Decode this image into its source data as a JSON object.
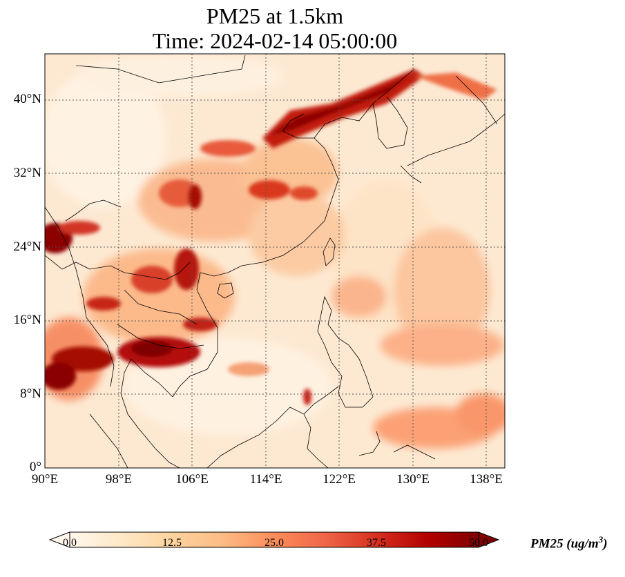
{
  "title": {
    "line1": "PM25 at 1.5km",
    "line2": "Time: 2024-02-14 05:00:00"
  },
  "map": {
    "region": "East and Southeast Asia",
    "extent": {
      "lon_min": 90,
      "lon_max": 140,
      "lat_min": 0,
      "lat_max": 45
    },
    "gridlines": true,
    "lat_labels": [
      "0°",
      "8°N",
      "16°N",
      "24°N",
      "32°N",
      "40°N"
    ],
    "lon_labels": [
      "90°E",
      "98°E",
      "106°E",
      "114°E",
      "122°E",
      "130°E",
      "138°E"
    ],
    "lat_values": [
      0,
      8,
      16,
      24,
      32,
      40
    ],
    "lon_values": [
      90,
      98,
      106,
      114,
      122,
      130,
      138
    ]
  },
  "colorbar": {
    "label": "PM25 (ug/m",
    "label_sup": "3",
    "label_end": ")",
    "ticks": [
      "0.0",
      "12.5",
      "25.0",
      "37.5",
      "50.0"
    ],
    "tick_values": [
      0,
      12.5,
      25,
      37.5,
      50
    ],
    "range": [
      0,
      50
    ],
    "extend": "both",
    "colormap": "OrRd",
    "colors": [
      "#fff7ec",
      "#fee8c8",
      "#fdd49e",
      "#fdbb84",
      "#fc8d59",
      "#ef6548",
      "#d7301f",
      "#b30000",
      "#7f0000"
    ]
  }
}
